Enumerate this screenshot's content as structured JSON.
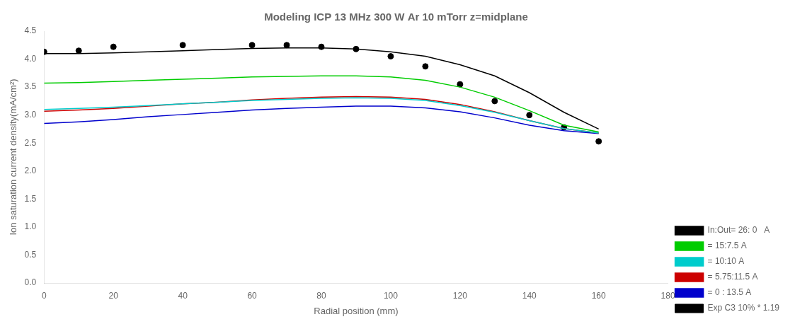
{
  "chart_data": {
    "type": "line",
    "title": "Modeling ICP 13 MHz 300 W Ar 10 mTorr z=midplane",
    "x_label": "Radial position (mm)",
    "y_label": "Ion saturation current density(mA/cm²)",
    "xlim": [
      0,
      180
    ],
    "ylim": [
      0.0,
      4.5
    ],
    "xticks": [
      0,
      20,
      40,
      60,
      80,
      100,
      120,
      140,
      160,
      180
    ],
    "yticks": [
      {
        "value": 0.0,
        "label": "0.0"
      },
      0.5,
      {
        "value": 1.0,
        "label": "1.0"
      },
      1.5,
      {
        "value": 2.0,
        "label": "2.0"
      },
      2.5,
      {
        "value": 3.0,
        "label": "3.0"
      },
      3.5,
      {
        "value": 4.0,
        "label": "4.0"
      },
      4.5
    ],
    "grid": false,
    "legend": "lower right",
    "series": [
      {
        "name": "In:Out= 26: 0   A",
        "type": "line",
        "color": "#000000",
        "marker": "none",
        "line_style": "solid",
        "x": [
          0,
          10,
          20,
          30,
          40,
          50,
          60,
          70,
          80,
          90,
          100,
          110,
          120,
          130,
          140,
          150,
          160
        ],
        "values": [
          4.1,
          4.1,
          4.11,
          4.13,
          4.15,
          4.17,
          4.19,
          4.2,
          4.2,
          4.18,
          4.13,
          4.05,
          3.9,
          3.7,
          3.4,
          3.05,
          2.75
        ]
      },
      {
        "name": "= 15:7.5 A",
        "type": "line",
        "color": "#00cc00",
        "marker": "none",
        "line_style": "solid",
        "x": [
          0,
          10,
          20,
          30,
          40,
          50,
          60,
          70,
          80,
          90,
          100,
          110,
          120,
          130,
          140,
          150,
          160
        ],
        "values": [
          3.57,
          3.58,
          3.6,
          3.62,
          3.64,
          3.66,
          3.68,
          3.69,
          3.7,
          3.7,
          3.68,
          3.62,
          3.5,
          3.32,
          3.08,
          2.82,
          2.7
        ]
      },
      {
        "name": "= 10:10 A",
        "type": "line",
        "color": "#00cccc",
        "marker": "none",
        "line_style": "solid",
        "x": [
          0,
          10,
          20,
          30,
          40,
          50,
          60,
          70,
          80,
          90,
          100,
          110,
          120,
          130,
          140,
          150,
          160
        ],
        "values": [
          3.1,
          3.12,
          3.14,
          3.17,
          3.2,
          3.23,
          3.26,
          3.28,
          3.3,
          3.31,
          3.3,
          3.26,
          3.17,
          3.05,
          2.9,
          2.76,
          2.68
        ]
      },
      {
        "name": "= 5.75:11.5 A",
        "type": "line",
        "color": "#cc0000",
        "marker": "none",
        "line_style": "solid",
        "x": [
          0,
          10,
          20,
          30,
          40,
          50,
          60,
          70,
          80,
          90,
          100,
          110,
          120,
          130,
          140,
          150,
          160
        ],
        "values": [
          3.07,
          3.09,
          3.12,
          3.16,
          3.2,
          3.23,
          3.27,
          3.3,
          3.32,
          3.33,
          3.32,
          3.28,
          3.19,
          3.06,
          2.9,
          2.76,
          2.68
        ]
      },
      {
        "name": "= 0 : 13.5 A",
        "type": "line",
        "color": "#0000cc",
        "marker": "none",
        "line_style": "solid",
        "x": [
          0,
          10,
          20,
          30,
          40,
          50,
          60,
          70,
          80,
          90,
          100,
          110,
          120,
          130,
          140,
          150,
          160
        ],
        "values": [
          2.85,
          2.88,
          2.92,
          2.97,
          3.01,
          3.05,
          3.09,
          3.12,
          3.14,
          3.16,
          3.16,
          3.13,
          3.06,
          2.95,
          2.82,
          2.72,
          2.67
        ]
      },
      {
        "name": "Exp C3 10% * 1.19",
        "type": "scatter",
        "color": "#000000",
        "marker": "circle",
        "line_style": "none",
        "x": [
          0,
          10,
          20,
          40,
          60,
          70,
          80,
          90,
          100,
          110,
          120,
          130,
          140,
          150,
          160
        ],
        "values": [
          4.13,
          4.15,
          4.22,
          4.25,
          4.25,
          4.25,
          4.22,
          4.18,
          4.05,
          3.87,
          3.55,
          3.25,
          3.0,
          2.78,
          2.53
        ]
      }
    ]
  }
}
